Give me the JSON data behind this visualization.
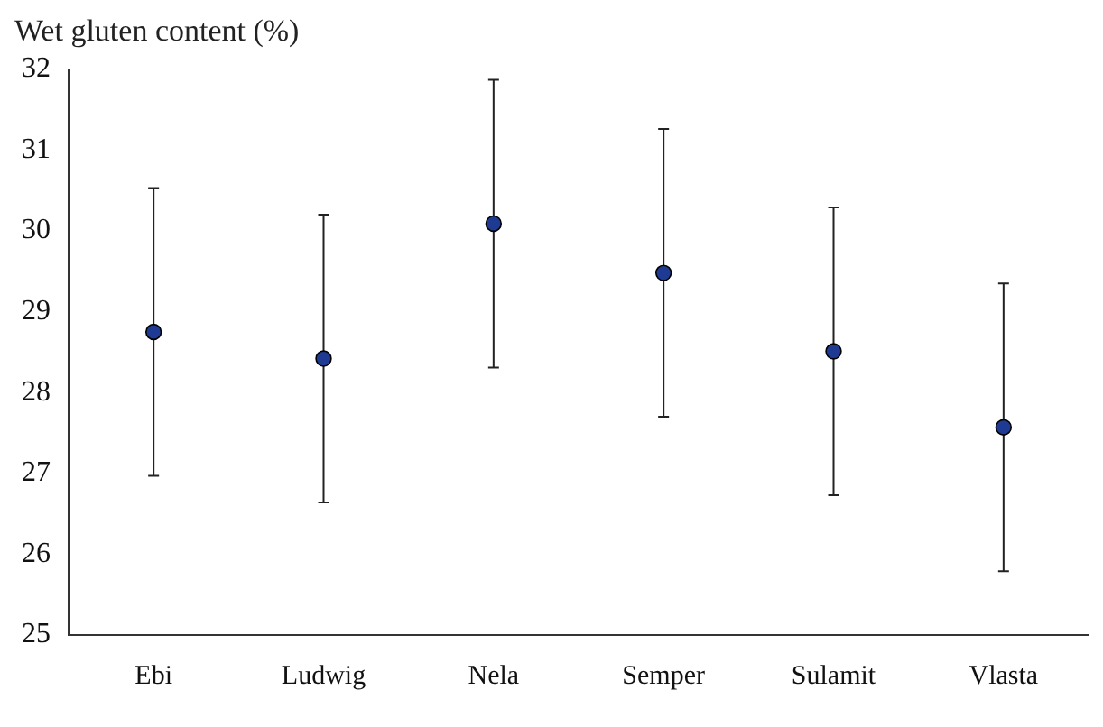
{
  "chart_data": {
    "type": "scatter",
    "ylabel": "Wet gluten content (%)",
    "categories": [
      "Ebi",
      "Ludwig",
      "Nela",
      "Semper",
      "Sulamit",
      "Vlasta"
    ],
    "series": [
      {
        "color": "#1f3a93",
        "values": [
          28.75,
          28.42,
          30.09,
          29.48,
          28.51,
          27.57
        ],
        "errors": [
          1.78,
          1.78,
          1.78,
          1.78,
          1.78,
          1.78
        ]
      }
    ],
    "ylim": [
      25,
      32
    ],
    "yticks": [
      25,
      26,
      27,
      28,
      29,
      30,
      31,
      32
    ],
    "grid": false,
    "legend": false,
    "marker": "circle"
  }
}
